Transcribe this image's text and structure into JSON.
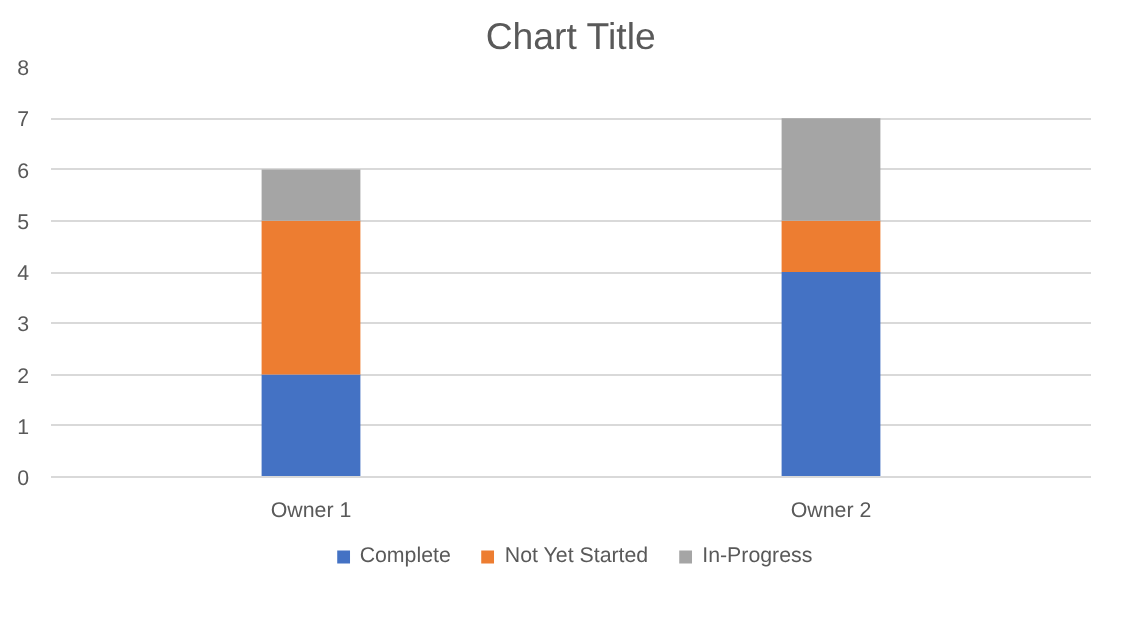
{
  "chart_data": {
    "type": "bar",
    "title": "Chart Title",
    "stacked": true,
    "categories": [
      "Owner 1",
      "Owner 2"
    ],
    "series": [
      {
        "name": "Complete",
        "color": "#4472c4",
        "values": [
          2,
          4
        ]
      },
      {
        "name": "Not Yet Started",
        "color": "#ed7d31",
        "values": [
          3,
          1
        ]
      },
      {
        "name": "In-Progress",
        "color": "#a5a5a5",
        "values": [
          1,
          2
        ]
      }
    ],
    "ylim": [
      0,
      8
    ],
    "yticks": [
      0,
      1,
      2,
      3,
      4,
      5,
      6,
      7,
      8
    ],
    "grid": "y",
    "legend": "bottom"
  }
}
